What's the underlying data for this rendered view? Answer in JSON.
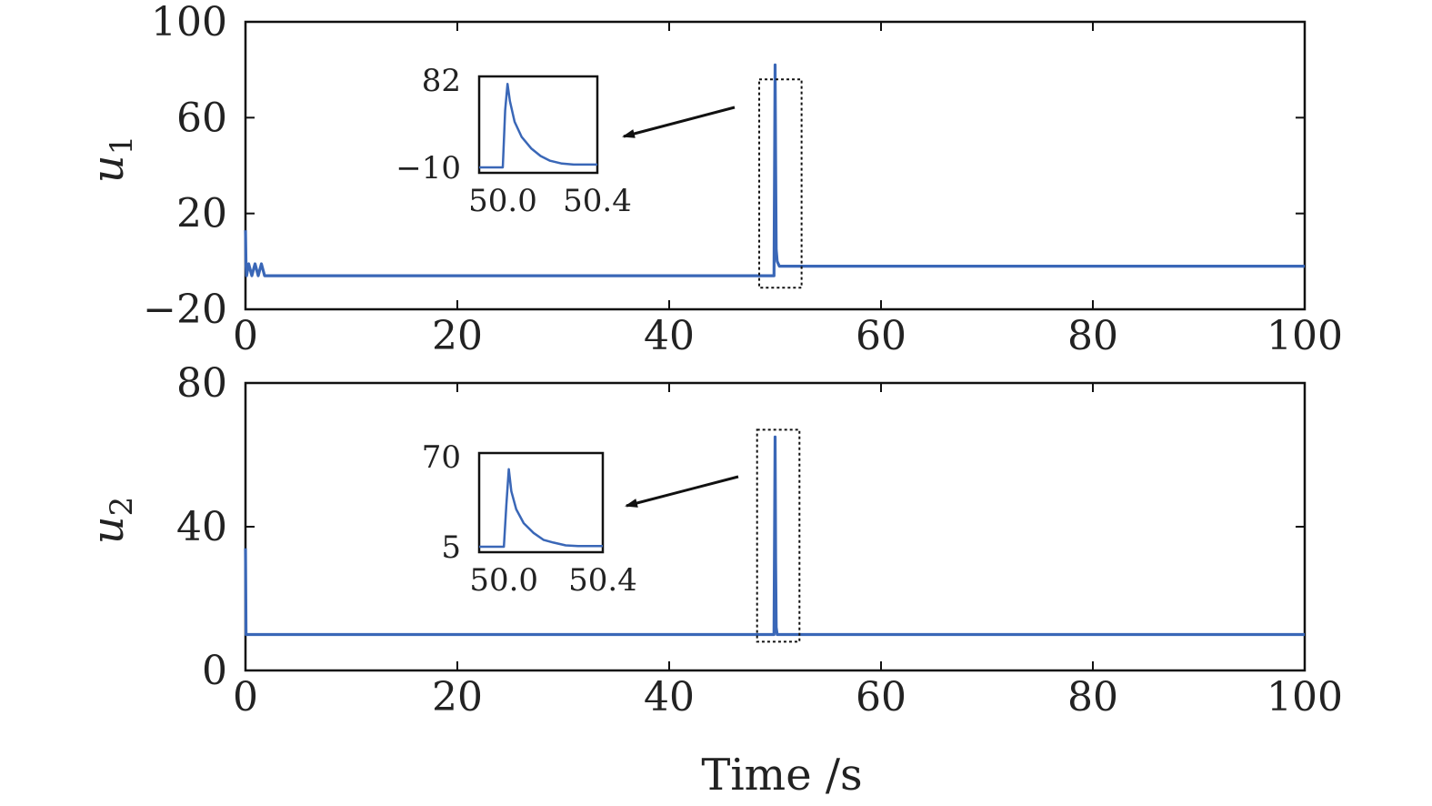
{
  "chart_data": {
    "type": "line",
    "xlabel": "Time /s",
    "line_color": "#3a67b7",
    "panels": [
      {
        "ylabel": "u",
        "ylabel_sub": "1",
        "xlim": [
          0,
          100
        ],
        "ylim": [
          -20,
          100
        ],
        "xticks": [
          "0",
          "20",
          "40",
          "60",
          "80",
          "100"
        ],
        "xtick_values": [
          0,
          20,
          40,
          60,
          80,
          100
        ],
        "yticks": [
          "−20",
          "20",
          "60",
          "100"
        ],
        "ytick_values": [
          -20,
          20,
          60,
          100
        ],
        "series": [
          {
            "x": [
              0,
              0.05,
              0.1,
              0.3,
              0.6,
              0.9,
              1.2,
              1.5,
              1.8,
              2.0,
              10,
              20,
              30,
              40,
              49.9,
              50.0,
              50.05,
              50.1,
              50.2,
              50.4,
              51.0,
              52.0,
              60,
              70,
              80,
              90,
              100
            ],
            "y": [
              13,
              -2,
              -6,
              -1,
              -6,
              -1,
              -6,
              -1,
              -6,
              -6,
              -6,
              -6,
              -6,
              -6,
              -6,
              82,
              40,
              5,
              0,
              -2,
              -2,
              -2,
              -2,
              -2,
              -2,
              -2,
              -2
            ]
          }
        ],
        "zoom_box_x": [
          48.5,
          52.5
        ],
        "zoom_box_y": [
          -11,
          76
        ],
        "inset": {
          "xlim": [
            49.9,
            50.4
          ],
          "ylim": [
            -10,
            82
          ],
          "xticks": [
            "50.0",
            "50.4"
          ],
          "xtick_values": [
            50.0,
            50.4
          ],
          "yticks": [
            "−10",
            "82"
          ],
          "ytick_values": [
            -10,
            82
          ],
          "x": [
            49.9,
            50.0,
            50.01,
            50.02,
            50.03,
            50.05,
            50.08,
            50.12,
            50.16,
            50.2,
            50.25,
            50.3,
            50.35,
            50.4
          ],
          "y": [
            -10,
            -10,
            50,
            78,
            60,
            38,
            22,
            10,
            2,
            -3,
            -6,
            -7,
            -7,
            -7
          ]
        }
      },
      {
        "ylabel": "u",
        "ylabel_sub": "2",
        "xlim": [
          0,
          100
        ],
        "ylim": [
          0,
          80
        ],
        "xticks": [
          "0",
          "20",
          "40",
          "60",
          "80",
          "100"
        ],
        "xtick_values": [
          0,
          20,
          40,
          60,
          80,
          100
        ],
        "yticks": [
          "0",
          "40",
          "80"
        ],
        "ytick_values": [
          0,
          40,
          80
        ],
        "series": [
          {
            "x": [
              0,
              0.05,
              0.2,
              10,
              20,
              30,
              40,
              49.9,
              50.0,
              50.05,
              50.1,
              50.2,
              51,
              60,
              70,
              80,
              90,
              100
            ],
            "y": [
              34,
              10,
              10,
              10,
              10,
              10,
              10,
              10,
              65,
              30,
              12,
              10,
              10,
              10,
              10,
              10,
              10,
              10
            ]
          }
        ],
        "zoom_box_x": [
          48.3,
          52.3
        ],
        "zoom_box_y": [
          8,
          67
        ],
        "inset": {
          "xlim": [
            49.9,
            50.4
          ],
          "ylim": [
            5,
            70
          ],
          "xticks": [
            "50.0",
            "50.4"
          ],
          "xtick_values": [
            50.0,
            50.4
          ],
          "yticks": [
            "5",
            "70"
          ],
          "ytick_values": [
            5,
            70
          ],
          "x": [
            49.9,
            50.0,
            50.01,
            50.02,
            50.03,
            50.05,
            50.08,
            50.12,
            50.16,
            50.2,
            50.25,
            50.3,
            50.35,
            50.4
          ],
          "y": [
            5,
            5,
            35,
            61,
            45,
            32,
            22,
            15,
            10,
            8,
            6,
            5.5,
            5.5,
            5.5
          ]
        }
      }
    ]
  }
}
